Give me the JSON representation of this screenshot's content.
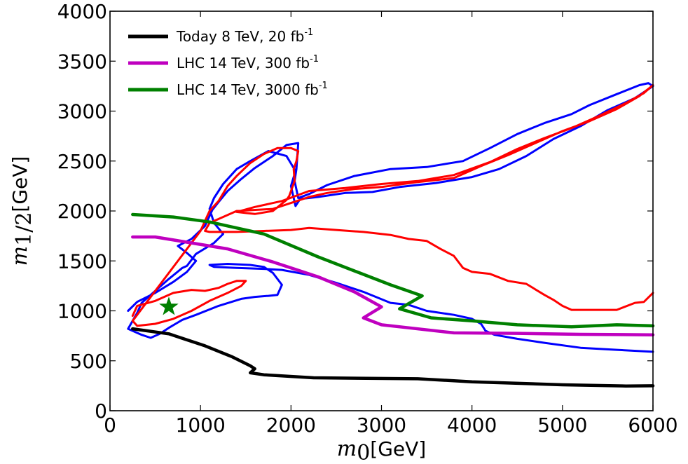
{
  "chart_data": {
    "type": "line",
    "xlabel": {
      "symbol": "m",
      "sub": "0",
      "unit": "[GeV]"
    },
    "ylabel": {
      "symbol": "m",
      "sub": "1/2",
      "unit": "[GeV]"
    },
    "xlim": [
      0,
      6000
    ],
    "ylim": [
      0,
      4000
    ],
    "xticks": [
      0,
      1000,
      2000,
      3000,
      4000,
      5000,
      6000
    ],
    "yticks": [
      0,
      500,
      1000,
      1500,
      2000,
      2500,
      3000,
      3500,
      4000
    ],
    "grid": false,
    "legend_position": "top-left",
    "series": [
      {
        "name": "Today 8 TeV, 20 fb",
        "sup": "-1",
        "color": "#000000",
        "points": [
          [
            250,
            820
          ],
          [
            650,
            770
          ],
          [
            1050,
            650
          ],
          [
            1350,
            540
          ],
          [
            1550,
            450
          ],
          [
            1600,
            420
          ],
          [
            1550,
            380
          ],
          [
            1700,
            360
          ],
          [
            2250,
            330
          ],
          [
            3400,
            320
          ],
          [
            4000,
            290
          ],
          [
            5000,
            260
          ],
          [
            5700,
            248
          ],
          [
            6000,
            250
          ]
        ]
      },
      {
        "name": "LHC 14 TeV, 300 fb",
        "sup": "-1",
        "color": "#bf00bf",
        "points": [
          [
            250,
            1740
          ],
          [
            500,
            1740
          ],
          [
            900,
            1680
          ],
          [
            1300,
            1620
          ],
          [
            1800,
            1490
          ],
          [
            2300,
            1340
          ],
          [
            2700,
            1190
          ],
          [
            3000,
            1040
          ],
          [
            2800,
            930
          ],
          [
            3000,
            860
          ],
          [
            3300,
            830
          ],
          [
            3800,
            780
          ],
          [
            4500,
            775
          ],
          [
            5200,
            765
          ],
          [
            6000,
            760
          ]
        ]
      },
      {
        "name": "LHC 14 TeV, 3000 fb",
        "sup": "-1",
        "color": "#008000",
        "points": [
          [
            250,
            1965
          ],
          [
            700,
            1940
          ],
          [
            1100,
            1890
          ],
          [
            1700,
            1770
          ],
          [
            2300,
            1540
          ],
          [
            2700,
            1400
          ],
          [
            3100,
            1260
          ],
          [
            3450,
            1150
          ],
          [
            3200,
            1020
          ],
          [
            3550,
            930
          ],
          [
            4000,
            900
          ],
          [
            4500,
            860
          ],
          [
            5100,
            840
          ],
          [
            5600,
            860
          ],
          [
            6000,
            850
          ]
        ]
      },
      {
        "name": "",
        "color": "#0000ff",
        "points": [
          [
            200,
            1000
          ],
          [
            300,
            1090
          ],
          [
            500,
            1180
          ],
          [
            700,
            1290
          ],
          [
            850,
            1390
          ],
          [
            950,
            1500
          ],
          [
            850,
            1580
          ],
          [
            750,
            1650
          ],
          [
            900,
            1720
          ],
          [
            1050,
            1850
          ],
          [
            1100,
            1950
          ],
          [
            1130,
            2010
          ],
          [
            1200,
            2090
          ],
          [
            1300,
            2200
          ],
          [
            1450,
            2320
          ],
          [
            1600,
            2430
          ],
          [
            1800,
            2550
          ],
          [
            1950,
            2660
          ],
          [
            2080,
            2680
          ],
          [
            2060,
            2420
          ],
          [
            2040,
            2300
          ],
          [
            2080,
            2130
          ],
          [
            2200,
            2170
          ],
          [
            2400,
            2260
          ],
          [
            2700,
            2350
          ],
          [
            3100,
            2420
          ],
          [
            3500,
            2440
          ],
          [
            3900,
            2500
          ],
          [
            4200,
            2630
          ],
          [
            4500,
            2770
          ],
          [
            4800,
            2880
          ],
          [
            5100,
            2970
          ],
          [
            5300,
            3060
          ],
          [
            5600,
            3170
          ],
          [
            5850,
            3260
          ],
          [
            5950,
            3280
          ],
          [
            6000,
            3250
          ],
          [
            5800,
            3130
          ],
          [
            5500,
            3010
          ],
          [
            5200,
            2850
          ],
          [
            4900,
            2720
          ],
          [
            4600,
            2550
          ],
          [
            4300,
            2420
          ],
          [
            4000,
            2340
          ],
          [
            3600,
            2280
          ],
          [
            3200,
            2240
          ],
          [
            2900,
            2190
          ],
          [
            2600,
            2180
          ],
          [
            2300,
            2140
          ],
          [
            2100,
            2120
          ],
          [
            2050,
            2050
          ],
          [
            2000,
            2250
          ],
          [
            2050,
            2400
          ],
          [
            1950,
            2550
          ],
          [
            1750,
            2600
          ],
          [
            1550,
            2500
          ],
          [
            1400,
            2420
          ],
          [
            1250,
            2270
          ],
          [
            1150,
            2130
          ],
          [
            1100,
            2020
          ],
          [
            1150,
            1880
          ],
          [
            1250,
            1770
          ],
          [
            1150,
            1680
          ],
          [
            950,
            1570
          ],
          [
            850,
            1450
          ],
          [
            800,
            1430
          ],
          [
            650,
            1320
          ],
          [
            500,
            1200
          ],
          [
            350,
            1080
          ],
          [
            300,
            980
          ],
          [
            250,
            900
          ],
          [
            200,
            820
          ],
          [
            350,
            760
          ],
          [
            450,
            730
          ],
          [
            550,
            770
          ],
          [
            650,
            830
          ],
          [
            800,
            910
          ],
          [
            950,
            960
          ],
          [
            1200,
            1050
          ],
          [
            1450,
            1120
          ],
          [
            1600,
            1140
          ],
          [
            1750,
            1150
          ],
          [
            1850,
            1160
          ],
          [
            1900,
            1260
          ],
          [
            1800,
            1380
          ],
          [
            1700,
            1440
          ],
          [
            1550,
            1460
          ],
          [
            1300,
            1470
          ],
          [
            1100,
            1460
          ],
          [
            1150,
            1440
          ],
          [
            1400,
            1430
          ],
          [
            1700,
            1420
          ],
          [
            1900,
            1410
          ],
          [
            2200,
            1360
          ],
          [
            2500,
            1280
          ],
          [
            2800,
            1190
          ],
          [
            3100,
            1080
          ],
          [
            3300,
            1060
          ],
          [
            3500,
            1000
          ],
          [
            3800,
            960
          ],
          [
            4000,
            920
          ],
          [
            4100,
            870
          ],
          [
            4150,
            800
          ],
          [
            4250,
            760
          ],
          [
            4500,
            720
          ],
          [
            4800,
            680
          ],
          [
            5200,
            630
          ],
          [
            5600,
            610
          ],
          [
            6000,
            590
          ]
        ]
      },
      {
        "name": "",
        "color": "#ff0000",
        "points": [
          [
            250,
            950
          ],
          [
            300,
            1050
          ],
          [
            500,
            1100
          ],
          [
            700,
            1180
          ],
          [
            900,
            1210
          ],
          [
            1050,
            1200
          ],
          [
            1200,
            1230
          ],
          [
            1300,
            1270
          ],
          [
            1400,
            1300
          ],
          [
            1500,
            1300
          ],
          [
            1450,
            1250
          ],
          [
            1300,
            1180
          ],
          [
            1100,
            1100
          ],
          [
            900,
            1000
          ],
          [
            700,
            920
          ],
          [
            500,
            870
          ],
          [
            300,
            850
          ],
          [
            250,
            900
          ],
          [
            1000,
            1800
          ],
          [
            1050,
            1900
          ],
          [
            1100,
            2000
          ],
          [
            1200,
            2100
          ],
          [
            1300,
            2250
          ],
          [
            1400,
            2350
          ],
          [
            1550,
            2480
          ],
          [
            1700,
            2570
          ],
          [
            1850,
            2630
          ],
          [
            2000,
            2630
          ],
          [
            2080,
            2600
          ],
          [
            2060,
            2500
          ],
          [
            2030,
            2420
          ],
          [
            2040,
            2300
          ],
          [
            1980,
            2150
          ],
          [
            1950,
            2110
          ],
          [
            1800,
            2000
          ],
          [
            1600,
            1970
          ],
          [
            1500,
            1980
          ],
          [
            1400,
            1990
          ],
          [
            1600,
            2040
          ],
          [
            1900,
            2100
          ],
          [
            2200,
            2200
          ],
          [
            2600,
            2230
          ],
          [
            3000,
            2270
          ],
          [
            3400,
            2300
          ],
          [
            3800,
            2360
          ],
          [
            4200,
            2490
          ],
          [
            4500,
            2620
          ],
          [
            4800,
            2730
          ],
          [
            5100,
            2830
          ],
          [
            5400,
            2950
          ],
          [
            5700,
            3080
          ],
          [
            5900,
            3180
          ],
          [
            6000,
            3260
          ],
          [
            5850,
            3150
          ],
          [
            5600,
            3020
          ],
          [
            5300,
            2900
          ],
          [
            5000,
            2800
          ],
          [
            4700,
            2680
          ],
          [
            4400,
            2560
          ],
          [
            4100,
            2450
          ],
          [
            3800,
            2330
          ],
          [
            3400,
            2290
          ],
          [
            3000,
            2240
          ],
          [
            2700,
            2220
          ],
          [
            2400,
            2180
          ],
          [
            2200,
            2140
          ],
          [
            2000,
            2080
          ],
          [
            1800,
            2020
          ],
          [
            1400,
            2000
          ],
          [
            1100,
            1880
          ],
          [
            1050,
            1800
          ],
          [
            1100,
            1790
          ],
          [
            1400,
            1790
          ],
          [
            1700,
            1800
          ],
          [
            2000,
            1810
          ],
          [
            2200,
            1830
          ],
          [
            2500,
            1810
          ],
          [
            2800,
            1790
          ],
          [
            3100,
            1760
          ],
          [
            3300,
            1720
          ],
          [
            3500,
            1700
          ],
          [
            3650,
            1620
          ],
          [
            3800,
            1550
          ],
          [
            3900,
            1430
          ],
          [
            4000,
            1390
          ],
          [
            4200,
            1370
          ],
          [
            4400,
            1300
          ],
          [
            4600,
            1270
          ],
          [
            4800,
            1160
          ],
          [
            4900,
            1110
          ],
          [
            5000,
            1050
          ],
          [
            5100,
            1010
          ],
          [
            5300,
            1010
          ],
          [
            5600,
            1010
          ],
          [
            5800,
            1080
          ],
          [
            5900,
            1090
          ],
          [
            6000,
            1180
          ]
        ]
      }
    ],
    "markers": [
      {
        "type": "star",
        "x": 650,
        "y": 1040,
        "color": "#008000"
      }
    ]
  }
}
